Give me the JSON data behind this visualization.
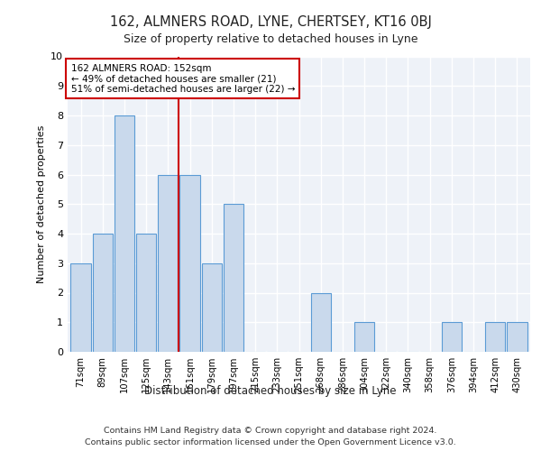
{
  "title": "162, ALMNERS ROAD, LYNE, CHERTSEY, KT16 0BJ",
  "subtitle": "Size of property relative to detached houses in Lyne",
  "xlabel": "Distribution of detached houses by size in Lyne",
  "ylabel": "Number of detached properties",
  "footer_line1": "Contains HM Land Registry data © Crown copyright and database right 2024.",
  "footer_line2": "Contains public sector information licensed under the Open Government Licence v3.0.",
  "bins": [
    "71sqm",
    "89sqm",
    "107sqm",
    "125sqm",
    "143sqm",
    "161sqm",
    "179sqm",
    "197sqm",
    "215sqm",
    "233sqm",
    "251sqm",
    "268sqm",
    "286sqm",
    "304sqm",
    "322sqm",
    "340sqm",
    "358sqm",
    "376sqm",
    "394sqm",
    "412sqm",
    "430sqm"
  ],
  "values": [
    3,
    4,
    8,
    4,
    6,
    6,
    3,
    5,
    0,
    0,
    0,
    2,
    0,
    1,
    0,
    0,
    0,
    1,
    0,
    1,
    1
  ],
  "bar_color": "#c9d9ec",
  "bar_edge_color": "#5b9bd5",
  "marker_color": "#cc0000",
  "annotation_title": "162 ALMNERS ROAD: 152sqm",
  "annotation_line1": "← 49% of detached houses are smaller (21)",
  "annotation_line2": "51% of semi-detached houses are larger (22) →",
  "annotation_box_color": "#cc0000",
  "ylim": [
    0,
    10
  ],
  "yticks": [
    0,
    1,
    2,
    3,
    4,
    5,
    6,
    7,
    8,
    9,
    10
  ],
  "background_color": "#eef2f8",
  "grid_color": "#ffffff"
}
